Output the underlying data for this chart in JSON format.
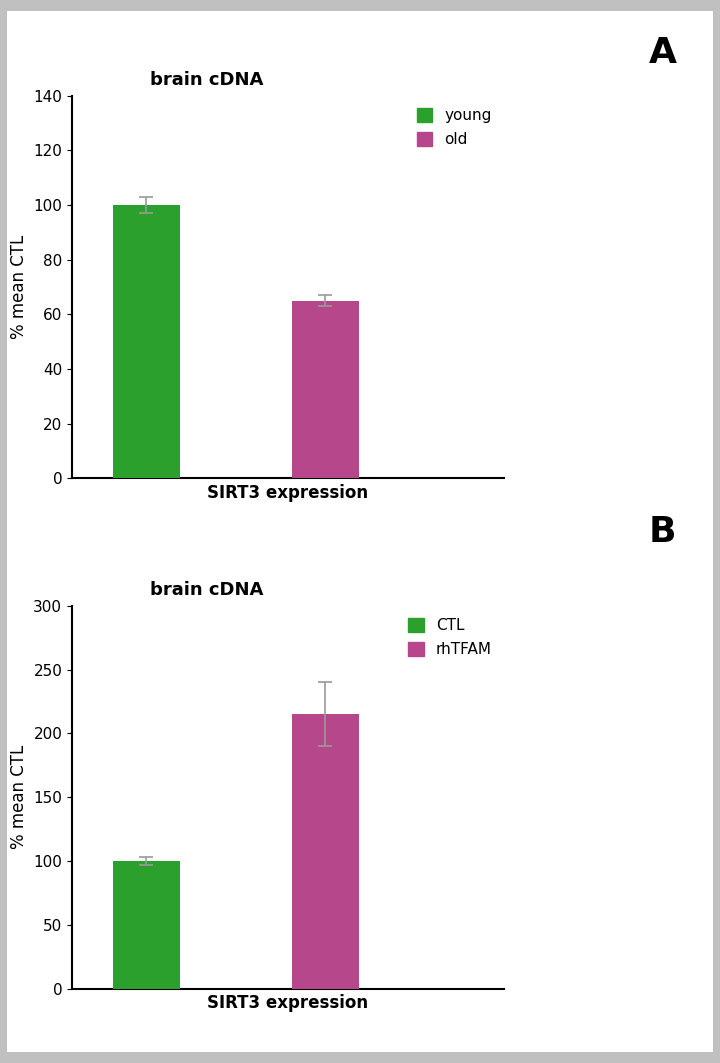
{
  "panel_A": {
    "title": "brain cDNA",
    "bars": [
      {
        "label": "young",
        "value": 100,
        "error": 3,
        "color": "#2ca02c"
      },
      {
        "label": "old",
        "value": 65,
        "error": 2,
        "color": "#b5478a"
      }
    ],
    "xlabel": "SIRT3 expression",
    "ylabel": "% mean CTL",
    "ylim": [
      0,
      140
    ],
    "yticks": [
      0,
      20,
      40,
      60,
      80,
      100,
      120,
      140
    ],
    "legend_labels": [
      "young",
      "old"
    ],
    "legend_colors": [
      "#2ca02c",
      "#b5478a"
    ],
    "panel_label": "A"
  },
  "panel_B": {
    "title": "brain cDNA",
    "bars": [
      {
        "label": "CTL",
        "value": 100,
        "error": 3,
        "color": "#2ca02c"
      },
      {
        "label": "rhTFAM",
        "value": 215,
        "error": 25,
        "color": "#b5478a"
      }
    ],
    "xlabel": "SIRT3 expression",
    "ylabel": "% mean CTL",
    "ylim": [
      0,
      300
    ],
    "yticks": [
      0,
      50,
      100,
      150,
      200,
      250,
      300
    ],
    "legend_labels": [
      "CTL",
      "rhTFAM"
    ],
    "legend_colors": [
      "#2ca02c",
      "#b5478a"
    ],
    "panel_label": "B"
  },
  "background_color": "#ffffff",
  "border_color": "#c0c0c0",
  "bar_width": 0.45,
  "title_fontsize": 13,
  "label_fontsize": 12,
  "tick_fontsize": 11,
  "legend_fontsize": 11,
  "panel_label_fontsize": 26
}
